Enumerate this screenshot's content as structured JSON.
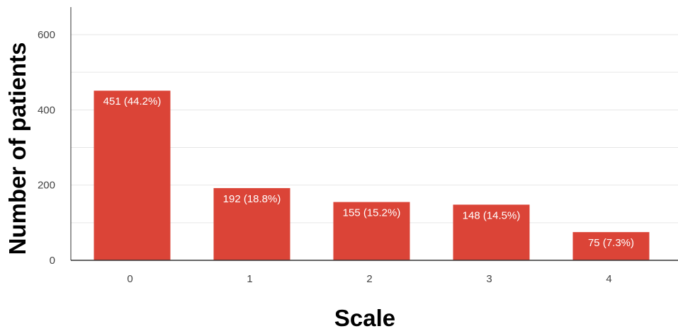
{
  "chart_data": {
    "type": "bar",
    "categories": [
      "0",
      "1",
      "2",
      "3",
      "4"
    ],
    "values": [
      451,
      192,
      155,
      148,
      75
    ],
    "data_labels": [
      "451 (44.2%)",
      "192 (18.8%)",
      "155 (15.2%)",
      "148 (14.5%)",
      "75 (7.3%)"
    ],
    "xlabel": "Scale",
    "ylabel": "Number of patients",
    "ylim": [
      0,
      600
    ],
    "yticks": [
      0,
      200,
      400,
      600
    ],
    "y_tick_labels": [
      "0",
      "200",
      "400",
      "600"
    ],
    "minor_gridlines": [
      100,
      300,
      500
    ],
    "grid": true,
    "bar_color": "#db4437",
    "grid_color": "#e6e6e6",
    "axis_color": "#333333"
  }
}
